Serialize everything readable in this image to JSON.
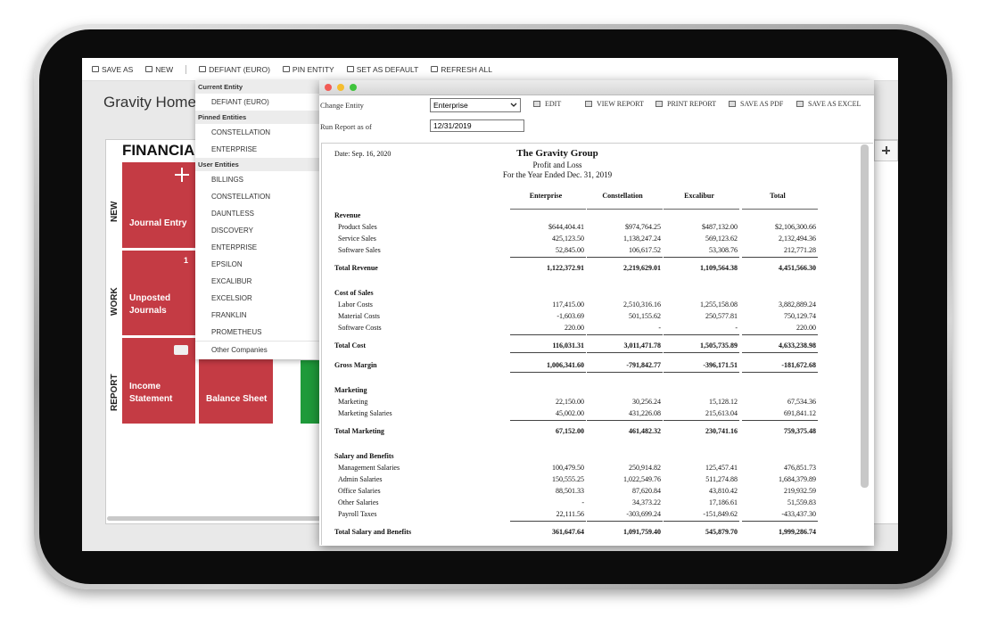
{
  "toolbar": {
    "items": [
      "SAVE AS",
      "NEW",
      "DEFIANT (EURO)",
      "PIN ENTITY",
      "SET AS DEFAULT",
      "REFRESH ALL"
    ]
  },
  "header": {
    "title": "Gravity Home"
  },
  "dashboard": {
    "title": "FINANCIAL",
    "rows": [
      "NEW",
      "WORK",
      "REPORT"
    ],
    "tiles": [
      {
        "label": "Journal Entry"
      },
      {
        "label": "Unposted Journals",
        "badge": "1"
      },
      {
        "label": "Income Statement"
      },
      {
        "label": "Balance Sheet"
      }
    ]
  },
  "entity_menu": {
    "sections": [
      {
        "title": "Current Entity",
        "items": [
          "DEFIANT (EURO)"
        ]
      },
      {
        "title": "Pinned Entities",
        "items": [
          "CONSTELLATION",
          "ENTERPRISE"
        ]
      },
      {
        "title": "User Entities",
        "items": [
          "BILLINGS",
          "CONSTELLATION",
          "DAUNTLESS",
          "DISCOVERY",
          "ENTERPRISE",
          "EPSILON",
          "EXCALIBUR",
          "EXCELSIOR",
          "FRANKLIN",
          "PROMETHEUS"
        ]
      }
    ],
    "footer": "Other Companies"
  },
  "report_window": {
    "controls": {
      "entity_label": "Change Entity",
      "entity_value": "Enterprise",
      "date_label": "Run Report as of",
      "date_value": "12/31/2019",
      "actions": [
        "EDIT",
        "VIEW REPORT",
        "PRINT REPORT",
        "SAVE AS PDF",
        "SAVE AS EXCEL"
      ]
    },
    "report": {
      "date": "Date: Sep. 16, 2020",
      "company": "The Gravity Group",
      "name": "Profit and Loss",
      "period": "For the Year Ended Dec. 31, 2019",
      "columns": [
        "Enterprise",
        "Constellation",
        "Excalibur",
        "Total"
      ],
      "sections": [
        {
          "heading": "Revenue",
          "rows": [
            {
              "label": "Product Sales",
              "values": [
                "$644,404.41",
                "$974,764.25",
                "$487,132.00",
                "$2,106,300.66"
              ]
            },
            {
              "label": "Service Sales",
              "values": [
                "425,123.50",
                "1,138,247.24",
                "569,123.62",
                "2,132,494.36"
              ]
            },
            {
              "label": "Software Sales",
              "values": [
                "52,845.00",
                "106,617.52",
                "53,308.76",
                "212,771.28"
              ]
            }
          ],
          "total": {
            "label": "Total Revenue",
            "values": [
              "1,122,372.91",
              "2,219,629.01",
              "1,109,564.38",
              "4,451,566.30"
            ]
          }
        },
        {
          "heading": "Cost of Sales",
          "rows": [
            {
              "label": "Labor Costs",
              "values": [
                "117,415.00",
                "2,510,316.16",
                "1,255,158.08",
                "3,882,889.24"
              ]
            },
            {
              "label": "Material Costs",
              "values": [
                "-1,603.69",
                "501,155.62",
                "250,577.81",
                "750,129.74"
              ]
            },
            {
              "label": "Software Costs",
              "values": [
                "220.00",
                "-",
                "-",
                "220.00"
              ]
            }
          ],
          "total": {
            "label": "Total Cost",
            "values": [
              "116,031.31",
              "3,011,471.78",
              "1,505,735.89",
              "4,633,238.98"
            ]
          },
          "margin": {
            "label": "Gross Margin",
            "values": [
              "1,006,341.60",
              "-791,842.77",
              "-396,171.51",
              "-181,672.68"
            ]
          }
        },
        {
          "heading": "Marketing",
          "rows": [
            {
              "label": "Marketing",
              "values": [
                "22,150.00",
                "30,256.24",
                "15,128.12",
                "67,534.36"
              ]
            },
            {
              "label": "Marketing Salaries",
              "values": [
                "45,002.00",
                "431,226.08",
                "215,613.04",
                "691,841.12"
              ]
            }
          ],
          "total": {
            "label": "Total Marketing",
            "values": [
              "67,152.00",
              "461,482.32",
              "230,741.16",
              "759,375.48"
            ]
          }
        },
        {
          "heading": "Salary and Benefits",
          "rows": [
            {
              "label": "Management Salaries",
              "values": [
                "100,479.50",
                "250,914.82",
                "125,457.41",
                "476,851.73"
              ]
            },
            {
              "label": "Admin Salaries",
              "values": [
                "150,555.25",
                "1,022,549.76",
                "511,274.88",
                "1,684,379.89"
              ]
            },
            {
              "label": "Office Salaries",
              "values": [
                "88,501.33",
                "87,620.84",
                "43,810.42",
                "219,932.59"
              ]
            },
            {
              "label": "Other Salaries",
              "values": [
                "-",
                "34,373.22",
                "17,186.61",
                "51,559.83"
              ]
            },
            {
              "label": "Payroll Taxes",
              "values": [
                "22,111.56",
                "-303,699.24",
                "-151,849.62",
                "-433,437.30"
              ]
            }
          ],
          "total": {
            "label": "Total Salary and Benefits",
            "values": [
              "361,647.64",
              "1,091,759.40",
              "545,879.70",
              "1,999,286.74"
            ]
          }
        }
      ]
    }
  }
}
